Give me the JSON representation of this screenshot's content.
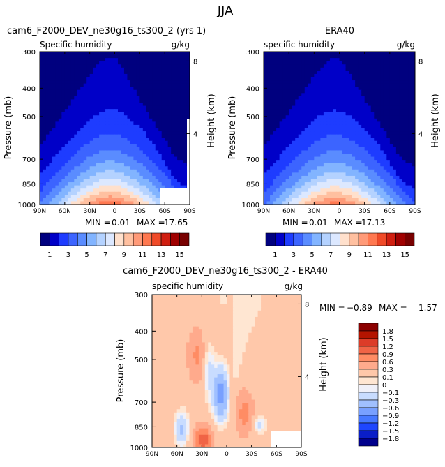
{
  "page": {
    "title": "JJA"
  },
  "colors": {
    "abs_scale": [
      "#00007f",
      "#0000c8",
      "#1e3cff",
      "#3c64ff",
      "#5a8cff",
      "#82b4ff",
      "#b4d2ff",
      "#dce8ff",
      "#ffe0cc",
      "#ffc0a0",
      "#ff9a78",
      "#ff7850",
      "#f04a28",
      "#d01e10",
      "#a00000",
      "#780000"
    ],
    "diff_scale": [
      "#00008c",
      "#0a1ec8",
      "#1e46ff",
      "#4678ff",
      "#78a0ff",
      "#a0c0ff",
      "#c8dcff",
      "#f0f0f8",
      "#ffe6d2",
      "#ffc8aa",
      "#ffaa8c",
      "#ff8c64",
      "#f06446",
      "#dc3c28",
      "#b41400",
      "#8c0000"
    ]
  },
  "chart_data": [
    {
      "type": "heatmap",
      "title": "cam6_F2000_DEV_ne30g16_ts300_2 (yrs 1)",
      "subtitle_left": "Specific humidity",
      "units": "g/kg",
      "ylabel": "Pressure (mb)",
      "y2label": "Height (km)",
      "x_ticks": [
        "90N",
        "60N",
        "30N",
        "0",
        "30S",
        "60S",
        "90S"
      ],
      "y_ticks": [
        "300",
        "400",
        "500",
        "700",
        "850",
        "1000"
      ],
      "y2_ticks": [
        "8",
        "4"
      ],
      "ylim": [
        1000,
        300
      ],
      "xlim": [
        "90N",
        "90S"
      ],
      "min_label": "MIN =",
      "min_value": "0.01",
      "max_label": "MAX =",
      "max_value": "17.65",
      "colorbar_labels": [
        "1",
        "3",
        "5",
        "7",
        "9",
        "11",
        "13",
        "15"
      ],
      "peak": {
        "lat": 5,
        "pressure": 1000,
        "value": 17.65
      }
    },
    {
      "type": "heatmap",
      "title": "ERA40",
      "subtitle_left": "specific humidity",
      "units": "g/kg",
      "ylabel": "Pressure (mb)",
      "y2label": "Height (km)",
      "x_ticks": [
        "90N",
        "60N",
        "30N",
        "0",
        "30S",
        "60S",
        "90S"
      ],
      "y_ticks": [
        "300",
        "400",
        "500",
        "700",
        "850",
        "1000"
      ],
      "y2_ticks": [
        "8",
        "4"
      ],
      "ylim": [
        1000,
        300
      ],
      "xlim": [
        "90N",
        "90S"
      ],
      "min_label": "MIN =",
      "min_value": "0.01",
      "max_label": "MAX =",
      "max_value": "17.13",
      "colorbar_labels": [
        "1",
        "3",
        "5",
        "7",
        "9",
        "11",
        "13",
        "15"
      ],
      "peak": {
        "lat": 5,
        "pressure": 1000,
        "value": 17.13
      }
    },
    {
      "type": "heatmap",
      "title": "cam6_F2000_DEV_ne30g16_ts300_2 - ERA40",
      "subtitle_left": "specific humidity",
      "units": "g/kg",
      "ylabel": "Pressure (mb)",
      "y2label": "Height (km)",
      "x_ticks": [
        "90N",
        "60N",
        "30N",
        "0",
        "30S",
        "60S",
        "90S"
      ],
      "y_ticks": [
        "300",
        "400",
        "500",
        "700",
        "850",
        "1000"
      ],
      "y2_ticks": [
        "8",
        "4"
      ],
      "ylim": [
        1000,
        300
      ],
      "xlim": [
        "90N",
        "90S"
      ],
      "min_label": "MIN =",
      "min_value": "−0.89",
      "max_label": "MAX =",
      "max_value": "1.57",
      "colorbar_labels": [
        "1.8",
        "1.5",
        "1.2",
        "0.9",
        "0.6",
        "0.3",
        "0.1",
        "0",
        "−0.1",
        "−0.3",
        "−0.6",
        "−0.9",
        "−1.2",
        "−1.5",
        "−1.8"
      ]
    }
  ]
}
